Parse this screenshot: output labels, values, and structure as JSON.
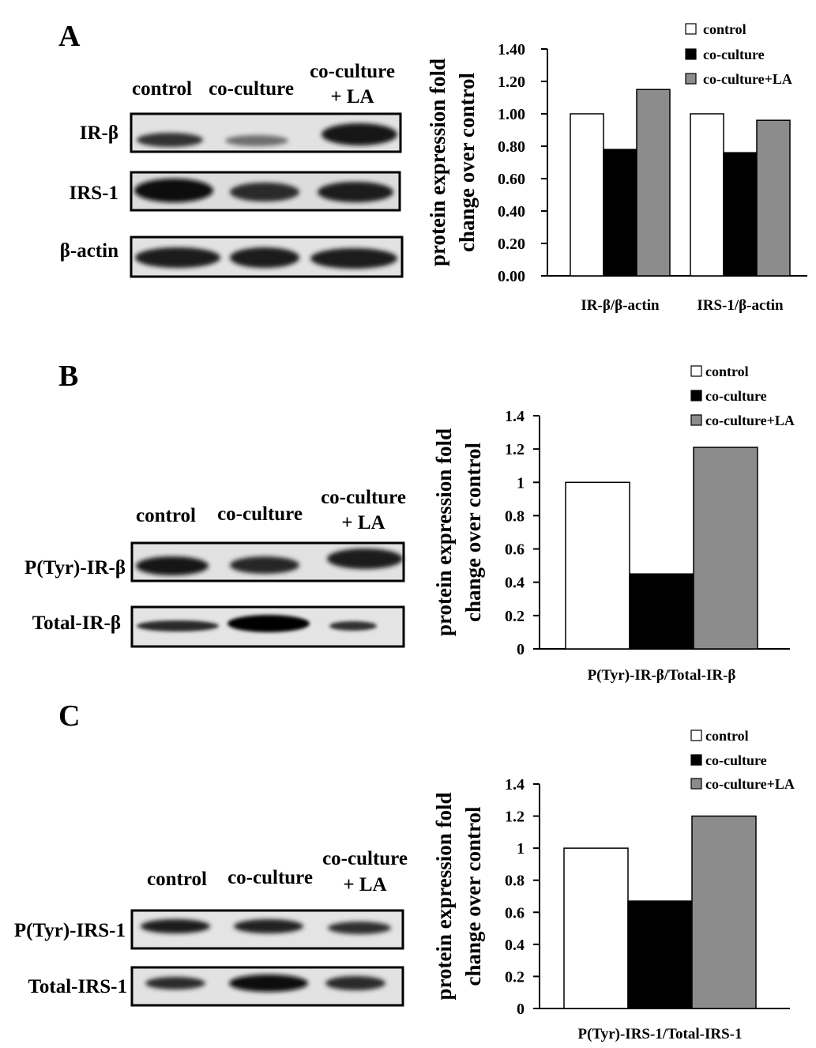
{
  "colors": {
    "control": "#ffffff",
    "co_culture": "#000000",
    "co_culture_la": "#8c8c8c"
  },
  "panels": [
    {
      "letter": "A",
      "blot": {
        "lanes": [
          "control",
          "co-culture",
          "co-culture",
          "+ LA"
        ],
        "rows": [
          {
            "label": "IR-β"
          },
          {
            "label": "IRS-1"
          },
          {
            "label": "β-actin"
          }
        ]
      }
    },
    {
      "letter": "B",
      "blot": {
        "lanes": [
          "control",
          "co-culture",
          "co-culture",
          "+ LA"
        ],
        "rows": [
          {
            "label": "P(Tyr)-IR-β"
          },
          {
            "label": "Total-IR-β"
          }
        ]
      }
    },
    {
      "letter": "C",
      "blot": {
        "lanes": [
          "control",
          "co-culture",
          "co-culture",
          "+ LA"
        ],
        "rows": [
          {
            "label": "P(Tyr)-IRS-1"
          },
          {
            "label": "Total-IRS-1"
          }
        ]
      }
    }
  ],
  "chart_data": [
    {
      "type": "bar",
      "ylabel": [
        "protein expression fold",
        "change over control"
      ],
      "ylim": [
        0,
        1.4
      ],
      "ticks": [
        "0.00",
        "0.20",
        "0.40",
        "0.60",
        "0.80",
        "1.00",
        "1.20",
        "1.40"
      ],
      "categories": [
        "IR-β/β-actin",
        "IRS-1/β-actin"
      ],
      "series": [
        {
          "name": "control",
          "values": [
            1.0,
            1.0
          ]
        },
        {
          "name": "co-culture",
          "values": [
            0.78,
            0.76
          ]
        },
        {
          "name": "co-culture+LA",
          "values": [
            1.15,
            0.96
          ]
        }
      ],
      "legend": "top-right",
      "grid": false
    },
    {
      "type": "bar",
      "ylabel": [
        "protein expression fold",
        "change over control"
      ],
      "ylim": [
        0,
        1.4
      ],
      "ticks": [
        "0",
        "0.2",
        "0.4",
        "0.6",
        "0.8",
        "1",
        "1.2",
        "1.4"
      ],
      "categories": [
        "P(Tyr)-IR-β/Total-IR-β"
      ],
      "series": [
        {
          "name": "control",
          "values": [
            1.0
          ]
        },
        {
          "name": "co-culture",
          "values": [
            0.45
          ]
        },
        {
          "name": "co-culture+LA",
          "values": [
            1.21
          ]
        }
      ],
      "legend": "top-right",
      "grid": false
    },
    {
      "type": "bar",
      "ylabel": [
        "protein expression fold",
        "change over control"
      ],
      "ylim": [
        0,
        1.4
      ],
      "ticks": [
        "0",
        "0.2",
        "0.4",
        "0.6",
        "0.8",
        "1",
        "1.2",
        "1.4"
      ],
      "categories": [
        "P(Tyr)-IRS-1/Total-IRS-1"
      ],
      "series": [
        {
          "name": "control",
          "values": [
            1.0
          ]
        },
        {
          "name": "co-culture",
          "values": [
            0.67
          ]
        },
        {
          "name": "co-culture+LA",
          "values": [
            1.2
          ]
        }
      ],
      "legend": "top-right",
      "grid": false
    }
  ]
}
